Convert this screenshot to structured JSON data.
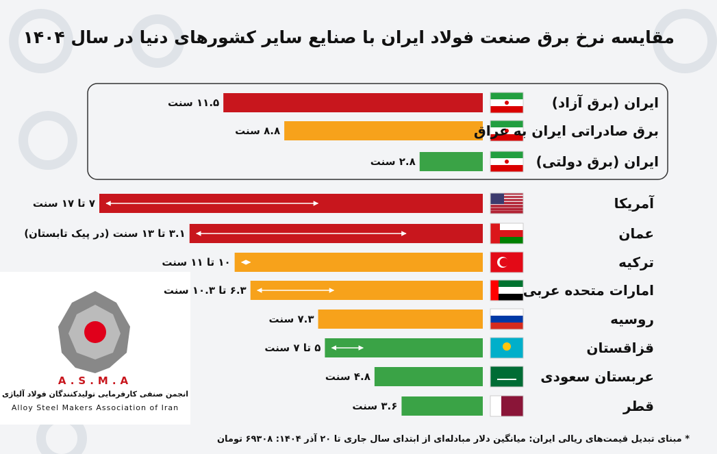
{
  "chart_data": {
    "type": "bar",
    "title": "مقایسه نرخ برق صنعت فولاد ایران با صنایع سایر کشورهای دنیا در سال ۱۴۰۴",
    "categories": [
      "ایران (برق آزاد)",
      "برق صادراتی ایران به عراق",
      "ایران (برق دولتی)",
      "آمریکا",
      "عمان",
      "ترکیه",
      "امارات متحده عربی",
      "روسیه",
      "قزاقستان",
      "عربستان سعودی",
      "قطر"
    ],
    "values": [
      11.5,
      8.8,
      2.8,
      17,
      13,
      11,
      10.3,
      7.3,
      7,
      4.8,
      3.6
    ],
    "range_low": [
      null,
      null,
      null,
      7,
      3.1,
      10,
      6.3,
      null,
      5,
      null,
      null
    ],
    "value_labels": [
      "۱۱.۵ سنت",
      "۸.۸ سنت",
      "۲.۸ سنت",
      "۷ تا ۱۷ سنت",
      "۳.۱ تا ۱۳ سنت (در پیک تابستان)",
      "۱۰ تا ۱۱ سنت",
      "۶.۳ تا ۱۰.۳ سنت",
      "۷.۳ سنت",
      "۵ تا ۷ سنت",
      "۴.۸ سنت",
      "۳.۶ سنت"
    ],
    "colors": [
      "#c8161d",
      "#f7a21b",
      "#3aa346",
      "#c8161d",
      "#c8161d",
      "#f7a21b",
      "#f7a21b",
      "#f7a21b",
      "#3aa346",
      "#3aa346",
      "#3aa346"
    ],
    "note": "* مبنای تبدیل قیمت‌های ریالی ایران: میانگین دلار مبادله‌ای از ابتدای سال جاری تا ۲۰ آذر ۱۴۰۴: ۶۹۳۰۸ تومان"
  },
  "logo": {
    "acronym": "A.S.M.A",
    "name_fa": "انجمن صنفی کارفرمایی تولیدکنندگان فولاد آلیاژی",
    "name_en": "Alloy Steel Makers Association of Iran"
  }
}
